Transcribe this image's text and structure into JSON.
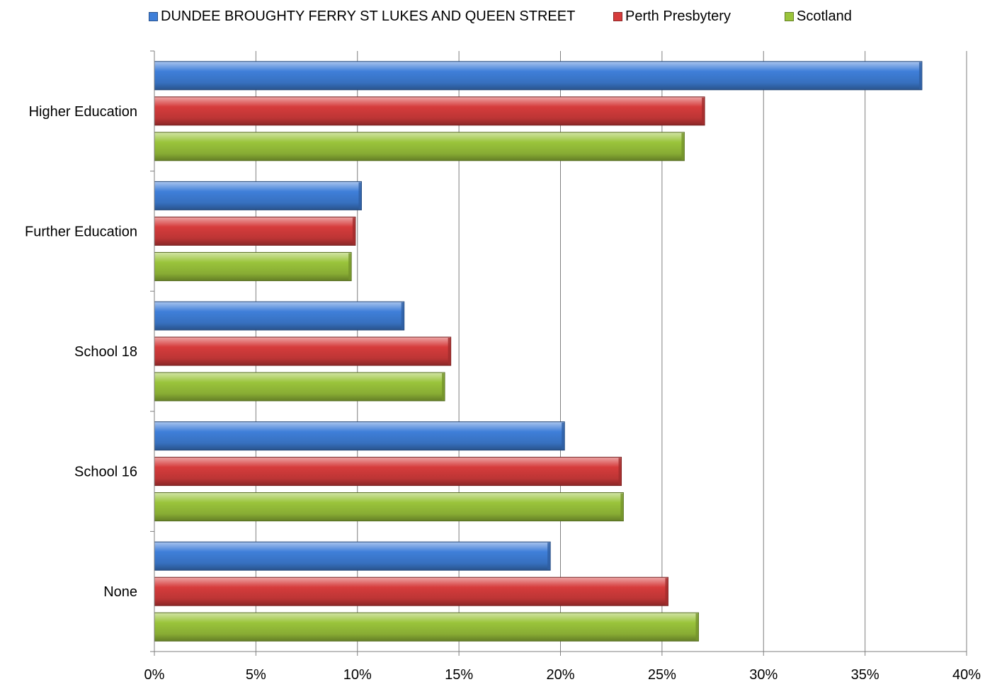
{
  "chart_data": {
    "type": "bar",
    "orientation": "horizontal",
    "title": "",
    "xlabel": "",
    "ylabel": "",
    "categories": [
      "Higher Education",
      "Further Education",
      "School 18",
      "School 16",
      "None"
    ],
    "series": [
      {
        "name": "DUNDEE BROUGHTY FERRY ST LUKES AND QUEEN STREET",
        "color": "#3f7fd9",
        "values": [
          37.8,
          10.2,
          12.3,
          20.2,
          19.5
        ]
      },
      {
        "name": "Perth Presbytery",
        "color": "#d63c3c",
        "values": [
          27.1,
          9.9,
          14.6,
          23.0,
          25.3
        ]
      },
      {
        "name": "Scotland",
        "color": "#9ac43b",
        "values": [
          26.1,
          9.7,
          14.3,
          23.1,
          26.8
        ]
      }
    ],
    "xlim": [
      0,
      40
    ],
    "x_ticks": [
      {
        "value": 0,
        "label": "0%"
      },
      {
        "value": 5,
        "label": "5%"
      },
      {
        "value": 10,
        "label": "10%"
      },
      {
        "value": 15,
        "label": "15%"
      },
      {
        "value": 20,
        "label": "20%"
      },
      {
        "value": 25,
        "label": "25%"
      },
      {
        "value": 30,
        "label": "30%"
      },
      {
        "value": 35,
        "label": "35%"
      },
      {
        "value": 40,
        "label": "40%"
      }
    ],
    "grid": true,
    "legend_position": "top"
  }
}
